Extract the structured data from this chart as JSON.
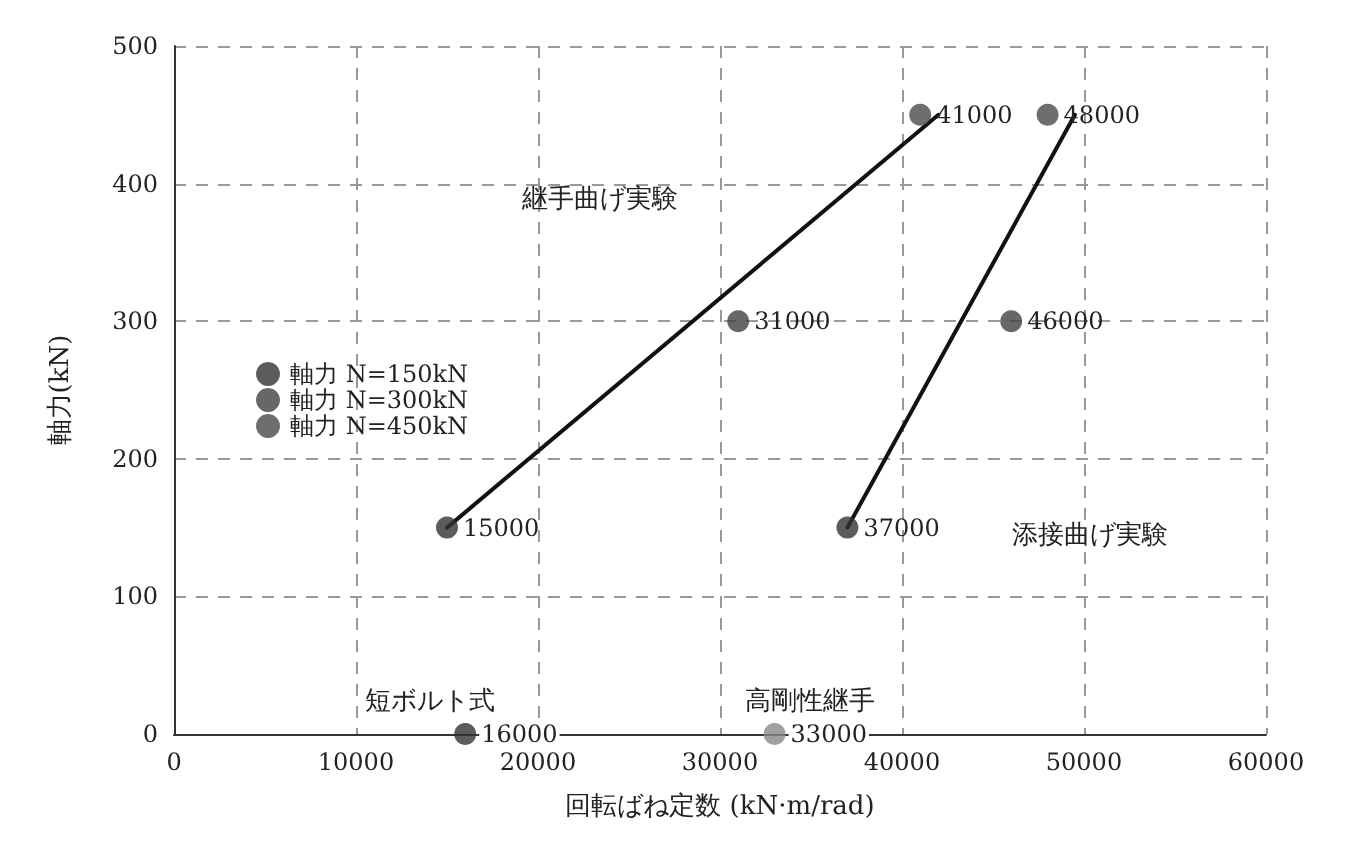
{
  "chart_data": {
    "type": "scatter",
    "xlabel": "回転ばね定数 (kN·m/rad)",
    "ylabel": "軸力(kN)",
    "xlim": [
      0,
      60000
    ],
    "xticks": [
      0,
      10000,
      20000,
      30000,
      40000,
      50000,
      60000
    ],
    "ylim": [
      0,
      500
    ],
    "yticks": [
      0,
      100,
      200,
      300,
      400,
      500
    ],
    "grid": true,
    "legend": "left",
    "marker": "circle",
    "series": [
      {
        "name": "軸力 N=150kN",
        "color": "#333333",
        "x": [
          15000,
          37000
        ],
        "values": [
          150,
          150
        ]
      },
      {
        "name": "軸力 N=300kN",
        "color": "#444040",
        "x": [
          31000,
          46000
        ],
        "values": [
          300,
          300
        ]
      },
      {
        "name": "軸力 N=450kN",
        "color": "#4a4a4a",
        "x": [
          41000,
          48000
        ],
        "values": [
          450,
          450
        ]
      },
      {
        "color": "#333333",
        "x": [
          16000
        ],
        "values": [
          0
        ]
      },
      {
        "color": "#888888",
        "x": [
          33000
        ],
        "values": [
          0
        ]
      },
      {
        "type": "line",
        "color": "#111111",
        "marker": "none",
        "line_style": "solid",
        "x": [
          15000,
          42000
        ],
        "values": [
          150,
          450
        ]
      },
      {
        "type": "line",
        "color": "#111111",
        "marker": "none",
        "line_style": "solid",
        "x": [
          37000,
          49500
        ],
        "values": [
          150,
          450
        ]
      }
    ],
    "annotations": [
      "継手曲げ実験",
      "添接曲げ実験",
      "短ボルト式",
      "高剛性継手",
      {
        "text": "15000",
        "x": 15000,
        "y": 150
      },
      {
        "text": "37000",
        "x": 37000,
        "y": 150
      },
      {
        "text": "31000",
        "x": 31000,
        "y": 300
      },
      {
        "text": "46000",
        "x": 46000,
        "y": 300
      },
      {
        "text": "41000",
        "x": 41000,
        "y": 450
      },
      {
        "text": "48000",
        "x": 48000,
        "y": 450
      },
      {
        "text": "16000",
        "x": 16000,
        "y": 0
      },
      {
        "text": "33000",
        "x": 33000,
        "y": 0
      }
    ]
  }
}
